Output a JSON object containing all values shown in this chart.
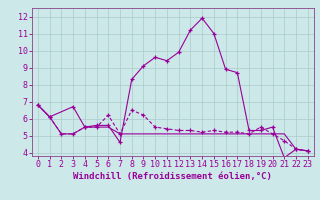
{
  "xlabel": "Windchill (Refroidissement éolien,°C)",
  "background_color": "#cce8e8",
  "grid_color": "#aacccc",
  "line_color": "#990099",
  "spine_color": "#884488",
  "xlim": [
    -0.5,
    23.5
  ],
  "ylim": [
    3.8,
    12.5
  ],
  "yticks": [
    4,
    5,
    6,
    7,
    8,
    9,
    10,
    11,
    12
  ],
  "xticks": [
    0,
    1,
    2,
    3,
    4,
    5,
    6,
    7,
    8,
    9,
    10,
    11,
    12,
    13,
    14,
    15,
    16,
    17,
    18,
    19,
    20,
    21,
    22,
    23
  ],
  "line1_x": [
    0,
    1,
    3,
    4,
    5,
    6,
    7,
    8,
    9,
    10,
    11,
    12,
    13,
    14,
    15,
    16,
    17,
    18,
    19,
    20,
    21,
    22,
    23
  ],
  "line1_y": [
    6.8,
    6.1,
    6.7,
    5.5,
    5.6,
    5.6,
    4.6,
    8.3,
    9.1,
    9.6,
    9.4,
    9.9,
    11.2,
    11.9,
    11.0,
    8.9,
    8.7,
    5.3,
    5.3,
    5.5,
    3.7,
    4.2,
    4.1
  ],
  "line2_x": [
    0,
    1,
    2,
    3,
    4,
    5,
    6,
    7,
    8,
    9,
    10,
    11,
    12,
    13,
    14,
    15,
    16,
    17,
    18,
    19,
    20,
    21,
    22,
    23
  ],
  "line2_y": [
    6.8,
    6.1,
    5.1,
    5.1,
    5.5,
    5.5,
    6.2,
    5.1,
    6.5,
    6.2,
    5.5,
    5.4,
    5.3,
    5.3,
    5.2,
    5.3,
    5.2,
    5.2,
    5.1,
    5.5,
    5.1,
    4.7,
    4.2,
    4.1
  ],
  "line3_x": [
    0,
    1,
    2,
    3,
    4,
    5,
    6,
    7,
    8,
    9,
    10,
    11,
    12,
    13,
    14,
    15,
    16,
    17,
    18,
    19,
    20,
    21,
    22,
    23
  ],
  "line3_y": [
    6.8,
    6.1,
    5.1,
    5.1,
    5.5,
    5.5,
    5.5,
    5.1,
    5.1,
    5.1,
    5.1,
    5.1,
    5.1,
    5.1,
    5.1,
    5.1,
    5.1,
    5.1,
    5.1,
    5.1,
    5.1,
    5.1,
    4.2,
    4.1
  ],
  "tick_fontsize": 6,
  "xlabel_fontsize": 6.5
}
